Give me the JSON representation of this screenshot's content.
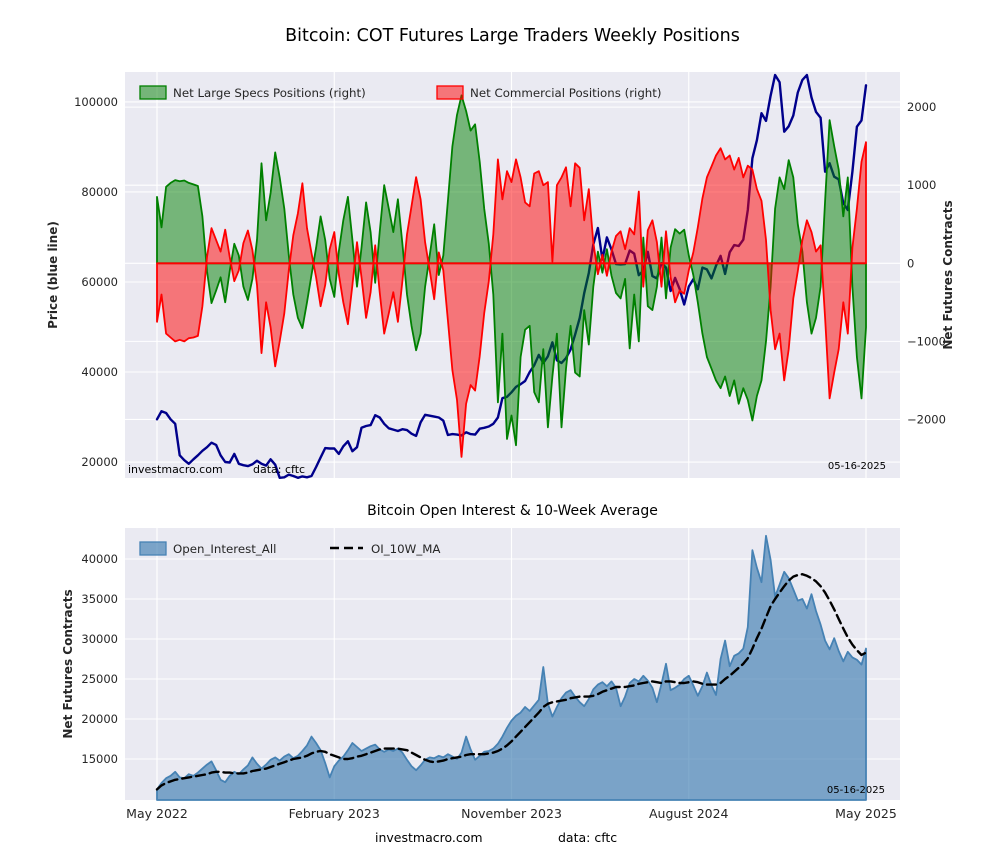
{
  "page": {
    "footer": {
      "site": "investmacro.com",
      "source": "data: cftc"
    }
  },
  "chart_data": [
    {
      "type": "area",
      "title": "Bitcoin: COT Futures Large Traders Weekly Positions",
      "ylabel_left": "Price (blue line)",
      "ylabel_right": "Net Futures Contracts",
      "legend": [
        {
          "label": "Net Large Specs Positions (right)",
          "color": "#008000"
        },
        {
          "label": "Net Commercial Positions (right)",
          "color": "#ff0000"
        }
      ],
      "annotations": {
        "site": "investmacro.com",
        "source": "data: cftc",
        "date": "05-16-2025"
      },
      "grid": true,
      "legend_position": "upper left inside",
      "x_tick_labels": [
        "May 2022",
        "February 2023",
        "November 2023",
        "August 2024",
        "May 2025"
      ],
      "x_tick_weeks": [
        0,
        39,
        78,
        117,
        156
      ],
      "x_labels_visible": false,
      "y_left": {
        "ticks": [
          20000,
          40000,
          60000,
          80000,
          100000
        ],
        "range": [
          16450,
          106660
        ]
      },
      "y_right": {
        "ticks": [
          -2000,
          -1000,
          0,
          1000,
          2000
        ],
        "range": [
          -2750,
          2450
        ]
      },
      "series": [
        {
          "name": "Price",
          "axis": "left",
          "style": "line",
          "color": "#00008b",
          "values": [
            29500,
            31300,
            30900,
            29500,
            28500,
            21500,
            20400,
            19600,
            20600,
            21500,
            22500,
            23300,
            24300,
            23800,
            21500,
            20000,
            19900,
            21800,
            19600,
            19300,
            19100,
            19500,
            20300,
            19600,
            19200,
            20600,
            19400,
            16500,
            16600,
            17200,
            16900,
            16500,
            16800,
            16600,
            16900,
            18900,
            21000,
            23100,
            23000,
            23000,
            21800,
            23500,
            24600,
            22400,
            23300,
            27600,
            28000,
            28200,
            30400,
            29900,
            28500,
            27500,
            27200,
            26900,
            27300,
            27100,
            26300,
            25800,
            28800,
            30500,
            30300,
            30100,
            29900,
            29200,
            26000,
            26200,
            26100,
            25900,
            26600,
            26200,
            26100,
            27400,
            27600,
            27900,
            28500,
            29900,
            34200,
            34500,
            35500,
            36700,
            37300,
            38000,
            40000,
            41500,
            43800,
            42000,
            43500,
            46600,
            42600,
            42000,
            43100,
            45000,
            48300,
            52000,
            57500,
            62000,
            68300,
            72000,
            65000,
            69900,
            67200,
            64000,
            63900,
            64000,
            67000,
            66300,
            61500,
            62500,
            66700,
            61300,
            60800,
            64200,
            63200,
            58000,
            60900,
            58400,
            55000,
            59000,
            60600,
            58400,
            63200,
            62800,
            60800,
            63600,
            65800,
            61800,
            66600,
            68200,
            68000,
            69400,
            76000,
            87500,
            91500,
            97500,
            95800,
            101400,
            106000,
            104400,
            93400,
            94600,
            97000,
            102100,
            104900,
            106000,
            101000,
            97800,
            96500,
            84500,
            86400,
            83400,
            82800,
            77500,
            76000,
            84500,
            94500,
            95900,
            103700
          ]
        },
        {
          "name": "Net Large Specs Positions",
          "axis": "right",
          "style": "area",
          "color": "#008000",
          "values": [
            850,
            460,
            980,
            1030,
            1065,
            1050,
            1060,
            1030,
            1010,
            990,
            600,
            -100,
            -510,
            -350,
            -180,
            -500,
            -100,
            250,
            100,
            -300,
            -470,
            -200,
            300,
            1280,
            550,
            900,
            1420,
            1100,
            700,
            100,
            -400,
            -700,
            -830,
            -500,
            -150,
            200,
            600,
            300,
            -200,
            -430,
            150,
            550,
            850,
            300,
            -300,
            200,
            780,
            400,
            -250,
            400,
            1000,
            700,
            400,
            820,
            250,
            -400,
            -800,
            -1115,
            -900,
            -300,
            100,
            500,
            -150,
            100,
            800,
            1500,
            1900,
            2150,
            1950,
            1700,
            1780,
            1300,
            700,
            250,
            -400,
            -1780,
            -900,
            -2250,
            -1950,
            -2330,
            -1200,
            -850,
            -800,
            -1650,
            -1780,
            -1100,
            -2100,
            -1450,
            -900,
            -2100,
            -1350,
            -800,
            -1400,
            -1450,
            -600,
            -1040,
            -300,
            150,
            -120,
            180,
            -160,
            -380,
            -450,
            -200,
            -1090,
            -400,
            -1000,
            330,
            -550,
            -600,
            -300,
            330,
            -450,
            200,
            436,
            380,
            430,
            100,
            -150,
            -500,
            -900,
            -1200,
            -1350,
            -1500,
            -1600,
            -1450,
            -1700,
            -1500,
            -1800,
            -1600,
            -1750,
            -2013,
            -1700,
            -1500,
            -1000,
            -300,
            700,
            1100,
            950,
            1321,
            1100,
            500,
            150,
            -500,
            -900,
            -700,
            -300,
            800,
            1833,
            1500,
            1200,
            600,
            1100,
            -300,
            -1200,
            -1730,
            -820
          ]
        },
        {
          "name": "Net Commercial Positions",
          "axis": "right",
          "style": "area",
          "color": "#ff0000",
          "values": [
            -750,
            -400,
            -900,
            -950,
            -1000,
            -980,
            -1000,
            -960,
            -950,
            -930,
            -550,
            80,
            450,
            300,
            150,
            430,
            80,
            -230,
            -90,
            260,
            420,
            170,
            -280,
            -1150,
            -500,
            -820,
            -1320,
            -1000,
            -640,
            -90,
            360,
            640,
            1025,
            450,
            130,
            -180,
            -550,
            -280,
            180,
            400,
            -140,
            -500,
            -780,
            -280,
            270,
            -180,
            -700,
            -370,
            230,
            -370,
            -900,
            -640,
            -370,
            -750,
            -230,
            370,
            730,
            1103,
            820,
            270,
            -90,
            -460,
            140,
            -90,
            -730,
            -1370,
            -1750,
            -2480,
            -1800,
            -1560,
            -1630,
            -1190,
            -640,
            -230,
            370,
            1330,
            820,
            1180,
            1040,
            1330,
            1100,
            780,
            730,
            1150,
            1180,
            1000,
            1040,
            20,
            1000,
            1100,
            1230,
            730,
            1280,
            1223,
            550,
            950,
            270,
            -140,
            110,
            -160,
            150,
            350,
            410,
            180,
            450,
            370,
            920,
            -300,
            423,
            550,
            270,
            -300,
            410,
            -180,
            -500,
            -350,
            -390,
            -90,
            140,
            460,
            830,
            1100,
            1240,
            1380,
            1474,
            1330,
            1380,
            1200,
            1350,
            1100,
            1250,
            1200,
            950,
            800,
            300,
            -600,
            -1100,
            -900,
            -1500,
            -1100,
            -450,
            -100,
            300,
            550,
            400,
            150,
            230,
            -700,
            -1731,
            -1400,
            -1100,
            -500,
            -900,
            200,
            700,
            1300,
            1551
          ]
        }
      ]
    },
    {
      "type": "area",
      "title": "Bitcoin Open Interest & 10-Week Average",
      "ylabel_left": "Net Futures Contracts",
      "legend": [
        {
          "label": "Open_Interest_All",
          "color": "#4682b4"
        },
        {
          "label": "OI_10W_MA",
          "color": "#000000"
        }
      ],
      "annotations": {
        "date": "05-16-2025"
      },
      "grid": true,
      "x_tick_labels": [
        "May 2022",
        "February 2023",
        "November 2023",
        "August 2024",
        "May 2025"
      ],
      "x_tick_weeks": [
        0,
        39,
        78,
        117,
        156
      ],
      "x_labels_visible": true,
      "y_left": {
        "ticks": [
          15000,
          20000,
          25000,
          30000,
          35000,
          40000
        ],
        "range": [
          9875,
          43875
        ]
      },
      "series": [
        {
          "name": "Open_Interest_All",
          "axis": "left",
          "style": "area",
          "color": "#4682b4",
          "values": [
            11200,
            12000,
            12600,
            12900,
            13400,
            12700,
            12600,
            13100,
            12900,
            13300,
            13800,
            14300,
            14700,
            13600,
            12400,
            12100,
            12900,
            13400,
            13100,
            13700,
            14200,
            15200,
            14400,
            13800,
            14300,
            14900,
            15200,
            14800,
            15300,
            15600,
            15100,
            15400,
            16000,
            16700,
            17800,
            17000,
            16100,
            14500,
            12700,
            14100,
            14800,
            15300,
            16100,
            17000,
            16500,
            16000,
            16300,
            16600,
            16800,
            16200,
            15900,
            16200,
            16000,
            16300,
            15800,
            14900,
            14100,
            13600,
            14200,
            14900,
            15200,
            15100,
            15400,
            15200,
            15600,
            15300,
            15000,
            15800,
            17800,
            16200,
            14900,
            15400,
            15900,
            16000,
            16300,
            16900,
            17800,
            18900,
            19800,
            20400,
            20800,
            21500,
            21000,
            21700,
            22400,
            26500,
            21900,
            20300,
            21500,
            22600,
            23300,
            23600,
            22800,
            22100,
            21600,
            22500,
            23700,
            24300,
            24600,
            24100,
            24700,
            23900,
            21600,
            22800,
            24500,
            25000,
            24700,
            25400,
            24800,
            23900,
            22100,
            24400,
            26900,
            23600,
            23900,
            24300,
            25000,
            25400,
            24200,
            22900,
            24100,
            25800,
            24200,
            23000,
            27500,
            29800,
            26600,
            27900,
            28200,
            28800,
            31500,
            41100,
            38900,
            37100,
            42900,
            39900,
            35300,
            36800,
            38400,
            37600,
            36200,
            34800,
            35000,
            33800,
            35600,
            33500,
            31800,
            29800,
            28700,
            30100,
            28500,
            27200,
            28400,
            27700,
            27400,
            26800,
            28800
          ]
        },
        {
          "name": "OI_10W_MA",
          "axis": "left",
          "style": "dashed-line",
          "color": "#000000",
          "values": [
            11200,
            11700,
            12000,
            12200,
            12400,
            12500,
            12600,
            12700,
            12800,
            12900,
            13000,
            13100,
            13300,
            13400,
            13400,
            13300,
            13300,
            13200,
            13200,
            13200,
            13300,
            13500,
            13600,
            13700,
            13800,
            14000,
            14200,
            14400,
            14600,
            14800,
            15000,
            15100,
            15200,
            15400,
            15700,
            15900,
            16000,
            15900,
            15600,
            15400,
            15200,
            15000,
            15000,
            15100,
            15300,
            15400,
            15600,
            15800,
            16000,
            16200,
            16300,
            16300,
            16300,
            16300,
            16200,
            16100,
            15800,
            15500,
            15200,
            14900,
            14700,
            14600,
            14700,
            14800,
            15000,
            15100,
            15200,
            15300,
            15500,
            15600,
            15600,
            15600,
            15600,
            15700,
            15800,
            16000,
            16300,
            16700,
            17200,
            17800,
            18400,
            19000,
            19600,
            20200,
            20800,
            21500,
            21900,
            22100,
            22200,
            22300,
            22400,
            22600,
            22700,
            22800,
            22800,
            22800,
            22900,
            23100,
            23400,
            23600,
            23800,
            24000,
            24000,
            24000,
            24100,
            24200,
            24400,
            24500,
            24600,
            24700,
            24600,
            24500,
            24700,
            24700,
            24600,
            24500,
            24500,
            24600,
            24700,
            24600,
            24400,
            24300,
            24300,
            24300,
            24500,
            25000,
            25400,
            25900,
            26400,
            26900,
            27600,
            28800,
            30100,
            31300,
            32700,
            34100,
            35000,
            35800,
            36600,
            37300,
            37800,
            38000,
            38100,
            37900,
            37600,
            37200,
            36600,
            35800,
            34800,
            33700,
            32500,
            31300,
            30200,
            29300,
            28600,
            28000,
            28300
          ]
        }
      ]
    }
  ],
  "style": {
    "plot_bg": "#eaeaf2",
    "grid_color": "#ffffff",
    "text_color": "#262626",
    "price_line_color": "#00008b",
    "specs_fill": "#008000",
    "commercials_fill": "#ff0000",
    "oi_fill": "#4682b4"
  }
}
